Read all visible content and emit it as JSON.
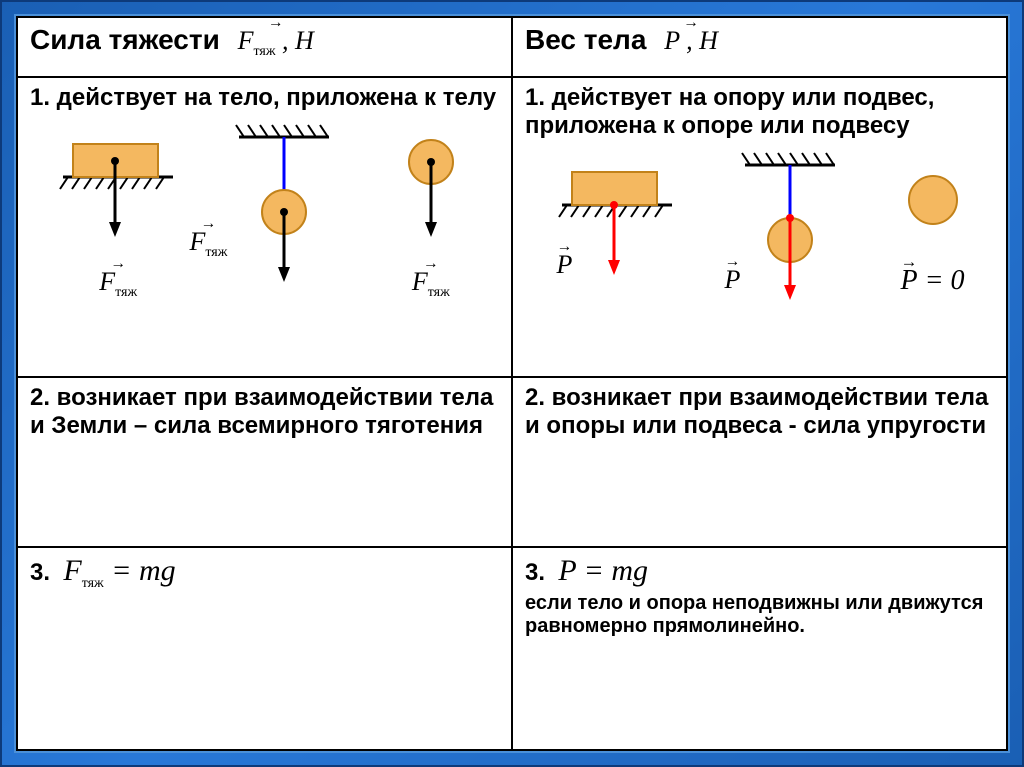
{
  "colors": {
    "page_bg_gradient": [
      "#1a5fb4",
      "#2878d8",
      "#1a5fb4"
    ],
    "frame_border": "#0d3a7a",
    "inner_border": "#4a90d9",
    "table_border": "#000000",
    "body_fill": "#f4b860",
    "body_stroke": "#c2821a",
    "arrow_black": "#000000",
    "arrow_red": "#ff0000",
    "rope_blue": "#0000ff",
    "hatch": "#000000"
  },
  "left": {
    "header": "Сила тяжести",
    "header_symbol_html": "F<span class='sub'>тяж</span> , H",
    "row1_text": "1. действует на тело, приложена к телу",
    "row2_text": "2. возникает при взаимодействии тела и Земли – сила всемирного тяготения",
    "row3_num": "3.",
    "row3_formula_html": "F<span class='sub'>тяж</span> = mg",
    "diagram_labels": {
      "d1": "F<span class='sub'>тяж</span>",
      "d2": "F<span class='sub'>тяж</span>",
      "d3": "F<span class='sub'>тяж</span>"
    }
  },
  "right": {
    "header": "Вес тела",
    "header_symbol_html": "P , H",
    "row1_text": "1. действует на опору или подвес, приложена к опоре или подвесу",
    "row2_text": "2. возникает при взаимодействии тела и опоры или подвеса - сила упругости",
    "row3_num": "3.",
    "row3_formula_html": "P = mg",
    "row3_note": "если тело и опора неподвижны или движутся равномерно прямолинейно.",
    "diagram_labels": {
      "d1": "P",
      "d2": "P",
      "d3_html": "P = 0"
    }
  },
  "diagram_style": {
    "rect_w": 80,
    "rect_h": 30,
    "circle_r": 22,
    "arrow_len": 55,
    "arrow_head_w": 10,
    "line_w": 2,
    "hatch_len": 10,
    "hatch_gap": 10
  },
  "layout": {
    "header_row_h": 60,
    "row1_h": 280,
    "row2_h": 160,
    "row3_h": 130
  }
}
